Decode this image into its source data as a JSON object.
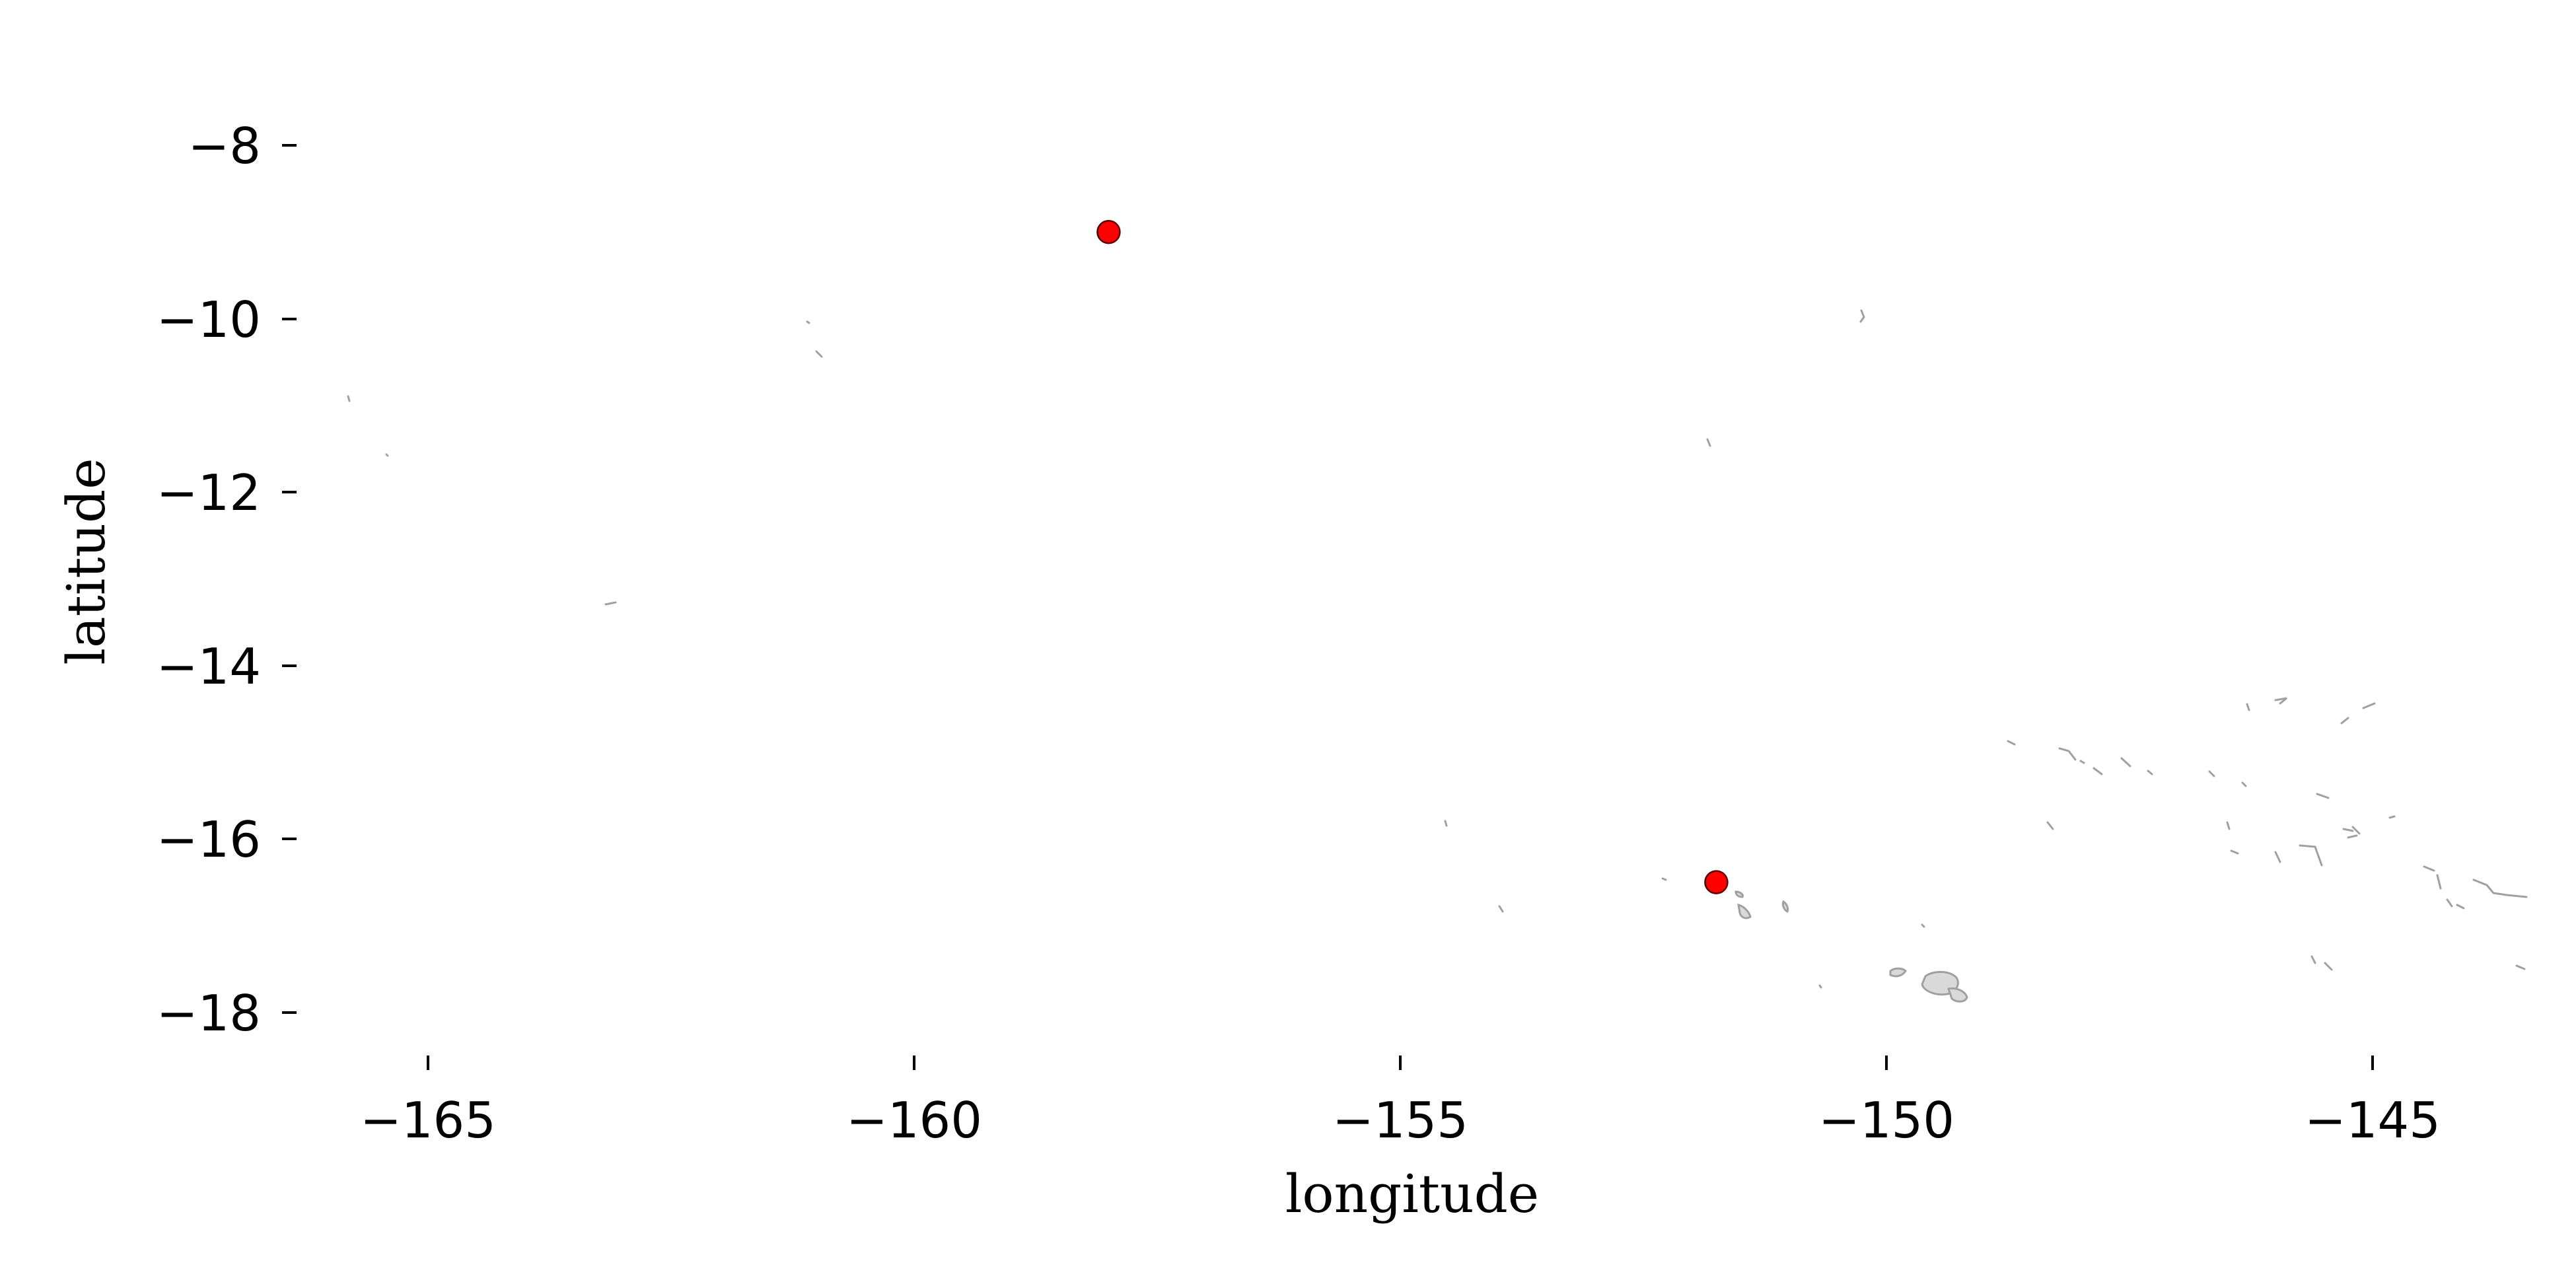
{
  "chart_data": {
    "type": "scatter",
    "title": "",
    "xlabel": "longitude",
    "ylabel": "latitude",
    "xlim": [
      -166.4,
      -143.3
    ],
    "ylim": [
      -18.6,
      -7.0
    ],
    "xticks": [
      -165,
      -160,
      -155,
      -150,
      -145
    ],
    "yticks": [
      -8,
      -10,
      -12,
      -14,
      -16,
      -18
    ],
    "xtick_labels": [
      "−165",
      "−160",
      "−155",
      "−150",
      "−145"
    ],
    "ytick_labels": [
      "−8",
      "−10",
      "−12",
      "−14",
      "−16",
      "−18"
    ],
    "grid": false,
    "legend": "none",
    "basemap": "coastlines (light grey land)",
    "series": [
      {
        "marker_color": "#ff0000",
        "points": [
          {
            "lon": -158.0,
            "lat": -9.0
          },
          {
            "lon": -151.75,
            "lat": -16.5
          }
        ]
      }
    ]
  }
}
